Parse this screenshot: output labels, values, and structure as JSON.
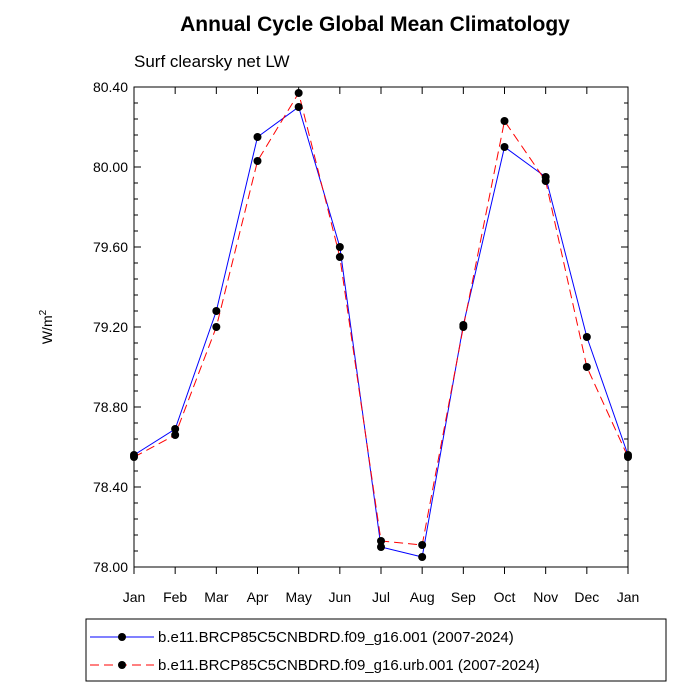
{
  "chart_data": {
    "type": "line",
    "title": "Annual Cycle Global Mean Climatology",
    "subtitle": "Surf clearsky net LW",
    "xlabel": "",
    "ylabel_base": "W/m",
    "ylabel_sup": "2",
    "categories": [
      "Jan",
      "Feb",
      "Mar",
      "Apr",
      "May",
      "Jun",
      "Jul",
      "Aug",
      "Sep",
      "Oct",
      "Nov",
      "Dec",
      "Jan"
    ],
    "ylim": [
      78.0,
      80.4
    ],
    "yticks": [
      78.0,
      78.4,
      78.8,
      79.2,
      79.6,
      80.0,
      80.4
    ],
    "ytick_labels": [
      "78.00",
      "78.40",
      "78.80",
      "79.20",
      "79.60",
      "80.00",
      "80.40"
    ],
    "series": [
      {
        "name": "b.e11.BRCP85C5CNBDRD.f09_g16.001 (2007-2024)",
        "color": "#0000ff",
        "dash": "solid",
        "values": [
          78.56,
          78.69,
          79.28,
          80.15,
          80.3,
          79.6,
          78.1,
          78.05,
          79.21,
          80.1,
          79.95,
          79.15,
          78.56
        ]
      },
      {
        "name": "b.e11.BRCP85C5CNBDRD.f09_g16.urb.001 (2007-2024)",
        "color": "#ff0000",
        "dash": "dashed",
        "values": [
          78.55,
          78.66,
          79.2,
          80.03,
          80.37,
          79.55,
          78.13,
          78.11,
          79.2,
          80.23,
          79.93,
          79.0,
          78.55
        ]
      }
    ]
  }
}
